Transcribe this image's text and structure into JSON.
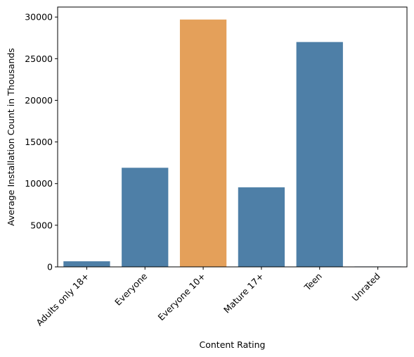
{
  "chart_data": {
    "type": "bar",
    "title": "",
    "xlabel": "Content Rating",
    "ylabel": "Average Installation Count in Thousands",
    "categories": [
      "Adults only 18+",
      "Everyone",
      "Everyone 10+",
      "Mature 17+",
      "Teen",
      "Unrated"
    ],
    "values": [
      670,
      11900,
      29700,
      9550,
      27000,
      50
    ],
    "ylim": [
      0,
      31200
    ],
    "yticks": [
      0,
      5000,
      10000,
      15000,
      20000,
      25000,
      30000
    ],
    "grid": false,
    "legend": "none",
    "bar_color": "#4e7fa7",
    "highlight_color": "#e4a05a",
    "highlight_category": "Everyone 10+"
  }
}
